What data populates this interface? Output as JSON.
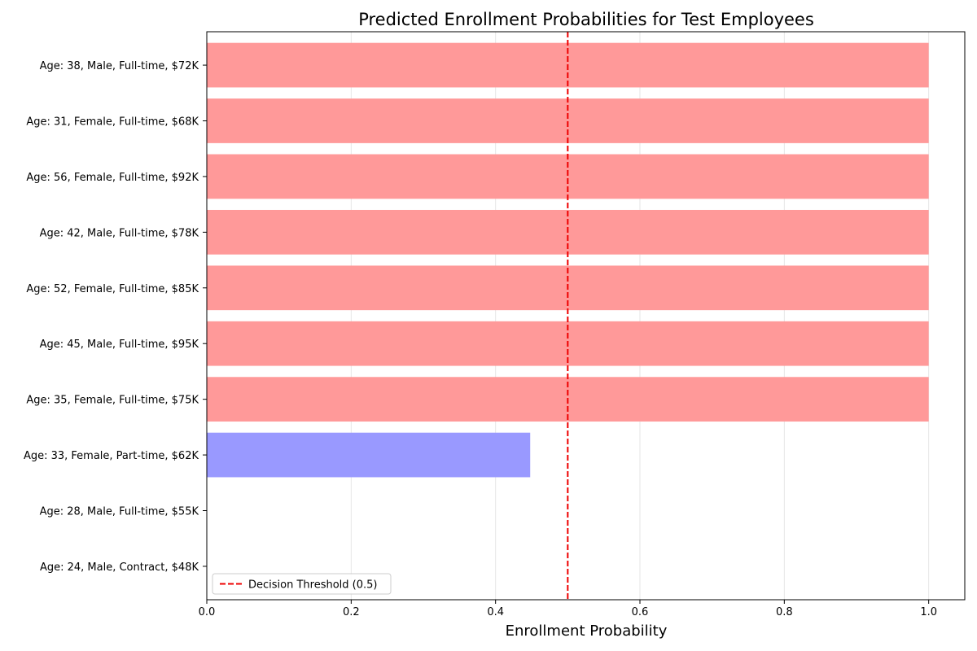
{
  "chart_data": {
    "type": "bar",
    "orientation": "horizontal",
    "title": "Predicted Enrollment Probabilities for Test Employees",
    "xlabel": "Enrollment Probability",
    "ylabel": "",
    "xlim": [
      0,
      1.05
    ],
    "xticks": [
      0.0,
      0.2,
      0.4,
      0.6,
      0.8,
      1.0
    ],
    "xtick_labels": [
      "0.0",
      "0.2",
      "0.4",
      "0.6",
      "0.8",
      "1.0"
    ],
    "grid": "x",
    "categories": [
      "Age: 38, Male, Full-time, $72K",
      "Age: 31, Female, Full-time, $68K",
      "Age: 56, Female, Full-time, $92K",
      "Age: 42, Male, Full-time, $78K",
      "Age: 52, Female, Full-time, $85K",
      "Age: 45, Male, Full-time, $95K",
      "Age: 35, Female, Full-time, $75K",
      "Age: 33, Female, Part-time, $62K",
      "Age: 28, Male, Full-time, $55K",
      "Age: 24, Male, Contract, $48K"
    ],
    "values": [
      1.0,
      1.0,
      1.0,
      1.0,
      1.0,
      1.0,
      1.0,
      0.448,
      0.0,
      0.0
    ],
    "threshold": 0.5,
    "legend": [
      {
        "label": "Decision Threshold (0.5)",
        "style": "dashed-line"
      }
    ],
    "legend_position": "lower-left",
    "colors": {
      "above_threshold": "#ff9999",
      "below_threshold": "#9999ff",
      "threshold_line": "#ee0000",
      "grid": "#e6e6e6",
      "axis": "#000000"
    }
  }
}
